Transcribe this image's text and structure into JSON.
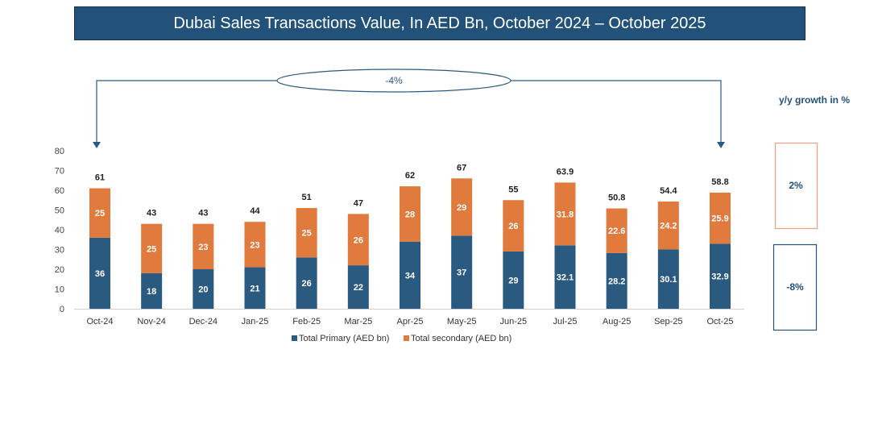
{
  "chart_data": {
    "type": "bar",
    "stacked": true,
    "title": "Dubai Sales Transactions Value, In AED Bn, October 2024 – October 2025",
    "categories": [
      "Oct-24",
      "Nov-24",
      "Dec-24",
      "Jan-25",
      "Feb-25",
      "Mar-25",
      "Apr-25",
      "May-25",
      "Jun-25",
      "Jul-25",
      "Aug-25",
      "Sep-25",
      "Oct-25"
    ],
    "series": [
      {
        "name": "Total Primary (AED bn)",
        "color": "#2b5a80",
        "values": [
          36,
          18,
          20,
          21,
          26,
          22,
          34,
          37,
          29,
          32.1,
          28.2,
          30.1,
          32.9
        ]
      },
      {
        "name": "Total secondary (AED bn)",
        "color": "#e07a3d",
        "values": [
          25,
          25,
          23,
          23,
          25,
          26,
          28,
          29,
          26,
          31.8,
          22.6,
          24.2,
          25.9
        ]
      }
    ],
    "totals": [
      "61",
      "43",
      "43",
      "44",
      "51",
      "47",
      "62",
      "67",
      "55",
      "63.9",
      "50.8",
      "54.4",
      "58.8"
    ],
    "primary_labels": [
      "36",
      "18",
      "20",
      "21",
      "26",
      "22",
      "34",
      "37",
      "29",
      "32.1",
      "28.2",
      "30.1",
      "32.9"
    ],
    "secondary_labels": [
      "25",
      "25",
      "23",
      "23",
      "25",
      "26",
      "28",
      "29",
      "26",
      "31.8",
      "22.6",
      "24.2",
      "25.9"
    ],
    "ylim": [
      0,
      80
    ],
    "yticks": [
      "0",
      "10",
      "20",
      "30",
      "40",
      "50",
      "60",
      "70",
      "80"
    ],
    "grid": false,
    "legend_placement": "bottom",
    "annotation": {
      "label": "-4%"
    },
    "yoy": {
      "heading": "y/y growth in %",
      "secondary": "2%",
      "primary": "-8%",
      "secondary_color": "#f0a080",
      "primary_color": "#22527a"
    }
  }
}
